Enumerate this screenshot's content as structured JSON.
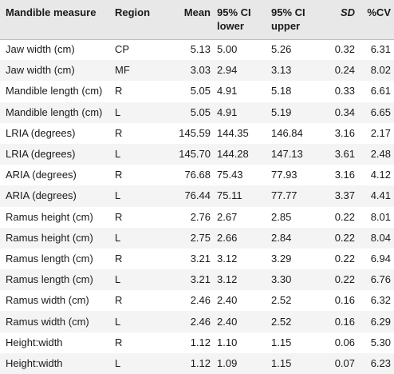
{
  "table": {
    "headers": {
      "measure": "Mandible measure",
      "region": "Region",
      "mean": "Mean",
      "ci_lower_1": "95% CI",
      "ci_lower_2": "lower",
      "ci_upper_1": "95% CI",
      "ci_upper_2": "upper",
      "sd": "SD",
      "cv": "%CV"
    },
    "rows": [
      {
        "measure": "Jaw width (cm)",
        "region": "CP",
        "mean": "5.13",
        "ci_lower": "5.00",
        "ci_upper": "5.26",
        "sd": "0.32",
        "cv": "6.31"
      },
      {
        "measure": "Jaw width (cm)",
        "region": "MF",
        "mean": "3.03",
        "ci_lower": "2.94",
        "ci_upper": "3.13",
        "sd": "0.24",
        "cv": "8.02"
      },
      {
        "measure": "Mandible length (cm)",
        "region": "R",
        "mean": "5.05",
        "ci_lower": "4.91",
        "ci_upper": "5.18",
        "sd": "0.33",
        "cv": "6.61"
      },
      {
        "measure": "Mandible length (cm)",
        "region": "L",
        "mean": "5.05",
        "ci_lower": "4.91",
        "ci_upper": "5.19",
        "sd": "0.34",
        "cv": "6.65"
      },
      {
        "measure": "LRIA (degrees)",
        "region": "R",
        "mean": "145.59",
        "ci_lower": "144.35",
        "ci_upper": "146.84",
        "sd": "3.16",
        "cv": "2.17"
      },
      {
        "measure": "LRIA (degrees)",
        "region": "L",
        "mean": "145.70",
        "ci_lower": "144.28",
        "ci_upper": "147.13",
        "sd": "3.61",
        "cv": "2.48"
      },
      {
        "measure": "ARIA (degrees)",
        "region": "R",
        "mean": "76.68",
        "ci_lower": "75.43",
        "ci_upper": "77.93",
        "sd": "3.16",
        "cv": "4.12"
      },
      {
        "measure": "ARIA (degrees)",
        "region": "L",
        "mean": "76.44",
        "ci_lower": "75.11",
        "ci_upper": "77.77",
        "sd": "3.37",
        "cv": "4.41"
      },
      {
        "measure": "Ramus height (cm)",
        "region": "R",
        "mean": "2.76",
        "ci_lower": "2.67",
        "ci_upper": "2.85",
        "sd": "0.22",
        "cv": "8.01"
      },
      {
        "measure": "Ramus height (cm)",
        "region": "L",
        "mean": "2.75",
        "ci_lower": "2.66",
        "ci_upper": "2.84",
        "sd": "0.22",
        "cv": "8.04"
      },
      {
        "measure": "Ramus length (cm)",
        "region": "R",
        "mean": "3.21",
        "ci_lower": "3.12",
        "ci_upper": "3.29",
        "sd": "0.22",
        "cv": "6.94"
      },
      {
        "measure": "Ramus length (cm)",
        "region": "L",
        "mean": "3.21",
        "ci_lower": "3.12",
        "ci_upper": "3.30",
        "sd": "0.22",
        "cv": "6.76"
      },
      {
        "measure": "Ramus width (cm)",
        "region": "R",
        "mean": "2.46",
        "ci_lower": "2.40",
        "ci_upper": "2.52",
        "sd": "0.16",
        "cv": "6.32"
      },
      {
        "measure": "Ramus width (cm)",
        "region": "L",
        "mean": "2.46",
        "ci_lower": "2.40",
        "ci_upper": "2.52",
        "sd": "0.16",
        "cv": "6.29"
      },
      {
        "measure": "Height:width",
        "region": "R",
        "mean": "1.12",
        "ci_lower": "1.10",
        "ci_upper": "1.15",
        "sd": "0.06",
        "cv": "5.30"
      },
      {
        "measure": "Height:width",
        "region": "L",
        "mean": "1.12",
        "ci_lower": "1.09",
        "ci_upper": "1.15",
        "sd": "0.07",
        "cv": "6.23"
      }
    ]
  }
}
